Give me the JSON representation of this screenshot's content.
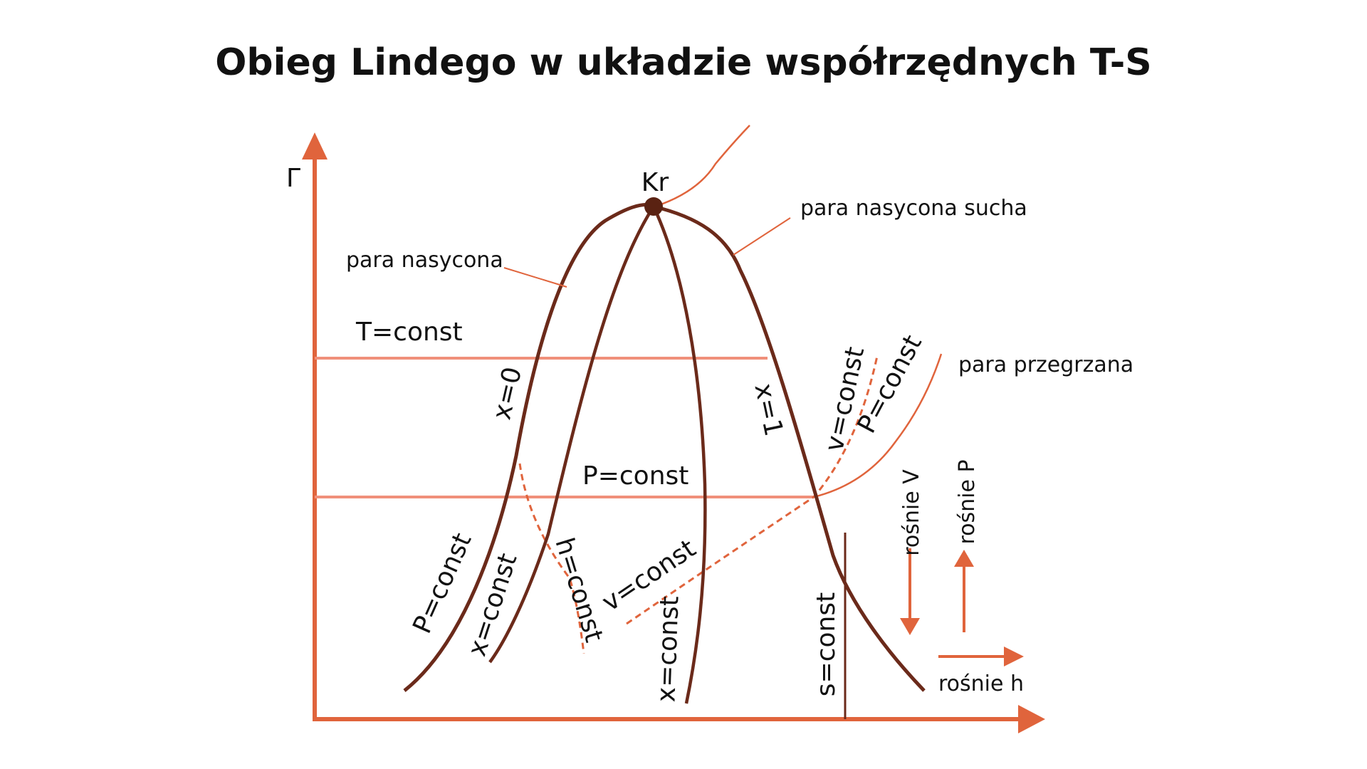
{
  "title": "Obieg Lindego w układzie współrzędnych T-S",
  "axes": {
    "y_label": "Г"
  },
  "colors": {
    "axis": "#e0643c",
    "curve": "#6b2a1a",
    "isoline": "#f0907a",
    "thin": "#e0643c",
    "point": "#5a2212",
    "text": "#111111"
  },
  "labels": {
    "critical_point": "Kr",
    "saturated_vapor": "para nasycona",
    "dry_saturated_vapor": "para nasycona sucha",
    "superheated_vapor": "para przegrzana",
    "t_const": "T=const",
    "p_const_mid": "P=const",
    "x0": "x=0",
    "x1": "x=1",
    "p_const_left": "P=const",
    "x_const_left": "x=const",
    "h_const": "h=const",
    "v_const_mid": "v=const",
    "x_const_right": "x=const",
    "s_const": "s=const",
    "v_const_right": "v=const",
    "p_const_right": "P=const",
    "rising_v": "rośnie V",
    "rising_p": "rośnie P",
    "rising_h": "rośnie h"
  }
}
